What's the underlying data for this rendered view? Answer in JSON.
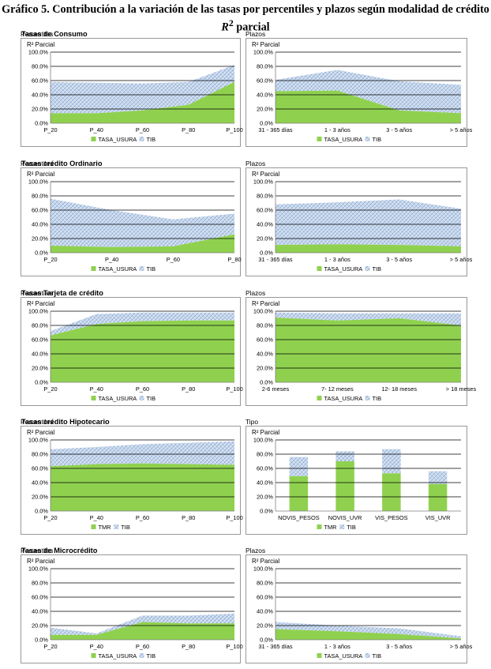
{
  "title": {
    "prefix": "Gráfico 5. Contribución a la variación de las tasas por percentiles y plazos según  modalidad de crédito",
    "r2": "R",
    "sup": "2",
    "suffix": " parcial"
  },
  "colors": {
    "green": "#8fd14f",
    "tib": "#c7d7ec",
    "tib_hatch": "#6f95c4",
    "gridline": "#000000",
    "axis": "#7f7f7f",
    "frame": "#7f7f7f"
  },
  "sections": [
    {
      "title": "Tasas de Consumo"
    },
    {
      "title": "Tasas crédito Ordinario"
    },
    {
      "title": "Tasas Tarjeta de crédito"
    },
    {
      "title": "Tasas crédito Hipotecario"
    },
    {
      "title": "Tasas de Microcrédito"
    }
  ],
  "chart_data": [
    {
      "type": "area",
      "stacked": true,
      "subtitle": "Percentiles",
      "ylabel": "R² Parcial",
      "ylim": [
        0,
        100
      ],
      "yticks": [
        "0.0%",
        "20.0%",
        "40.0%",
        "60.0%",
        "80.0%",
        "100.0%"
      ],
      "categories": [
        "P_20",
        "P_40",
        "P_60",
        "P_80",
        "P_100"
      ],
      "series": [
        {
          "name": "TASA_USURA",
          "values": [
            14,
            14,
            18,
            26,
            58
          ]
        },
        {
          "name": "TIB",
          "values": [
            44,
            43,
            38,
            32,
            24
          ]
        }
      ]
    },
    {
      "type": "area",
      "stacked": true,
      "subtitle": "Plazos",
      "ylabel": "R² Parcial",
      "ylim": [
        0,
        100
      ],
      "yticks": [
        "0.0%",
        "20.0%",
        "40.0%",
        "60.0%",
        "80.0%",
        "100.0%"
      ],
      "categories": [
        "31 - 365 días",
        "1 - 3 años",
        "3 - 5 años",
        "> 5 años"
      ],
      "series": [
        {
          "name": "TASA_USURA",
          "values": [
            45,
            46,
            18,
            14
          ]
        },
        {
          "name": "TIB",
          "values": [
            16,
            29,
            41,
            40
          ]
        }
      ]
    },
    {
      "type": "area",
      "stacked": true,
      "subtitle": "Percentiles",
      "ylabel": "R² Parcial",
      "ylim": [
        0,
        100
      ],
      "yticks": [
        "0.0%",
        "20.0%",
        "40.0%",
        "60.0%",
        "80.0%",
        "100.0%"
      ],
      "categories": [
        "P_20",
        "P_40",
        "P_60",
        "P_80"
      ],
      "series": [
        {
          "name": "TASA_USURA",
          "values": [
            10,
            8,
            9,
            26
          ]
        },
        {
          "name": "TIB",
          "values": [
            66,
            52,
            38,
            29
          ]
        }
      ]
    },
    {
      "type": "area",
      "stacked": true,
      "subtitle": "Plazos",
      "ylabel": "R² Parcial",
      "ylim": [
        0,
        100
      ],
      "yticks": [
        "0.0%",
        "20.0%",
        "40.0%",
        "60.0%",
        "80.0%",
        "100.0%"
      ],
      "categories": [
        "31 - 365 días",
        "1 - 3 años",
        "3 - 5 años",
        "> 5 años"
      ],
      "series": [
        {
          "name": "TASA_USURA",
          "values": [
            11,
            12,
            11,
            9
          ]
        },
        {
          "name": "TIB",
          "values": [
            57,
            59,
            64,
            53
          ]
        }
      ]
    },
    {
      "type": "area",
      "stacked": true,
      "subtitle": "Percentiles",
      "ylabel": "R² Parcial",
      "ylim": [
        0,
        100
      ],
      "yticks": [
        "0.0%",
        "20.0%",
        "40.0%",
        "60.0%",
        "80.0%",
        "100.0%"
      ],
      "categories": [
        "P_20",
        "P_40",
        "P_60",
        "P_80",
        "P_100"
      ],
      "series": [
        {
          "name": "TASA_USURA",
          "values": [
            66,
            82,
            86,
            87,
            87
          ]
        },
        {
          "name": "TIB",
          "values": [
            6,
            14,
            12,
            11,
            11
          ]
        }
      ]
    },
    {
      "type": "area",
      "stacked": true,
      "subtitle": "Plazos",
      "ylabel": "R² Parcial",
      "ylim": [
        0,
        100
      ],
      "yticks": [
        "0.0%",
        "20.0%",
        "40.0%",
        "60.0%",
        "80.0%",
        "100.0%"
      ],
      "categories": [
        "2-6 meses",
        "7- 12 meses",
        "12- 18 meses",
        "> 18 meses"
      ],
      "series": [
        {
          "name": "TASA_USURA",
          "values": [
            91,
            87,
            90,
            80
          ]
        },
        {
          "name": "TIB",
          "values": [
            7,
            10,
            7,
            17
          ]
        }
      ]
    },
    {
      "type": "area",
      "stacked": true,
      "subtitle": "Percentiles",
      "ylabel": "R² Parcial",
      "ylim": [
        0,
        100
      ],
      "yticks": [
        "0.0%",
        "20.0%",
        "40.0%",
        "60.0%",
        "80.0%",
        "100.0%"
      ],
      "categories": [
        "P_20",
        "P_40",
        "P_60",
        "P_80",
        "P_100"
      ],
      "series": [
        {
          "name": "TMR",
          "values": [
            63,
            66,
            67,
            66,
            65
          ]
        },
        {
          "name": "TIB",
          "values": [
            24,
            24,
            27,
            30,
            33
          ]
        }
      ]
    },
    {
      "type": "bar",
      "stacked": true,
      "subtitle": "Tipo",
      "ylabel": "R² Parcial",
      "ylim": [
        0,
        100
      ],
      "yticks": [
        "0.0%",
        "20.0%",
        "40.0%",
        "60.0%",
        "80.0%",
        "100.0%"
      ],
      "categories": [
        "NOVIS_PESOS",
        "NOVIS_UVR",
        "VIS_PESOS",
        "VIS_UVR"
      ],
      "series": [
        {
          "name": "TMR",
          "values": [
            49,
            70,
            53,
            38
          ]
        },
        {
          "name": "TIB",
          "values": [
            27,
            14,
            34,
            18
          ]
        }
      ]
    },
    {
      "type": "area",
      "stacked": true,
      "subtitle": "Percentiles",
      "ylabel": "R² Parcial",
      "ylim": [
        0,
        100
      ],
      "yticks": [
        "0.0%",
        "20.0%",
        "40.0%",
        "60.0%",
        "80.0%",
        "100.0%"
      ],
      "categories": [
        "P_20",
        "P_40",
        "P_60",
        "P_80",
        "P_100"
      ],
      "series": [
        {
          "name": "TASA_USURA",
          "values": [
            7,
            7,
            25,
            23,
            23
          ]
        },
        {
          "name": "TIB",
          "values": [
            10,
            2,
            9,
            11,
            14
          ]
        }
      ]
    },
    {
      "type": "area",
      "stacked": true,
      "subtitle": "Plazos",
      "ylabel": "R² Parcial",
      "ylim": [
        0,
        100
      ],
      "yticks": [
        "0.0%",
        "20.0%",
        "40.0%",
        "60.0%",
        "80.0%",
        "100.0%"
      ],
      "categories": [
        "31 - 365 días",
        "1 - 3 años",
        "3 - 5 años",
        "> 5 años"
      ],
      "series": [
        {
          "name": "TASA_USURA",
          "values": [
            15,
            12,
            8,
            2
          ]
        },
        {
          "name": "TIB",
          "values": [
            10,
            8,
            8,
            3
          ]
        }
      ]
    }
  ]
}
